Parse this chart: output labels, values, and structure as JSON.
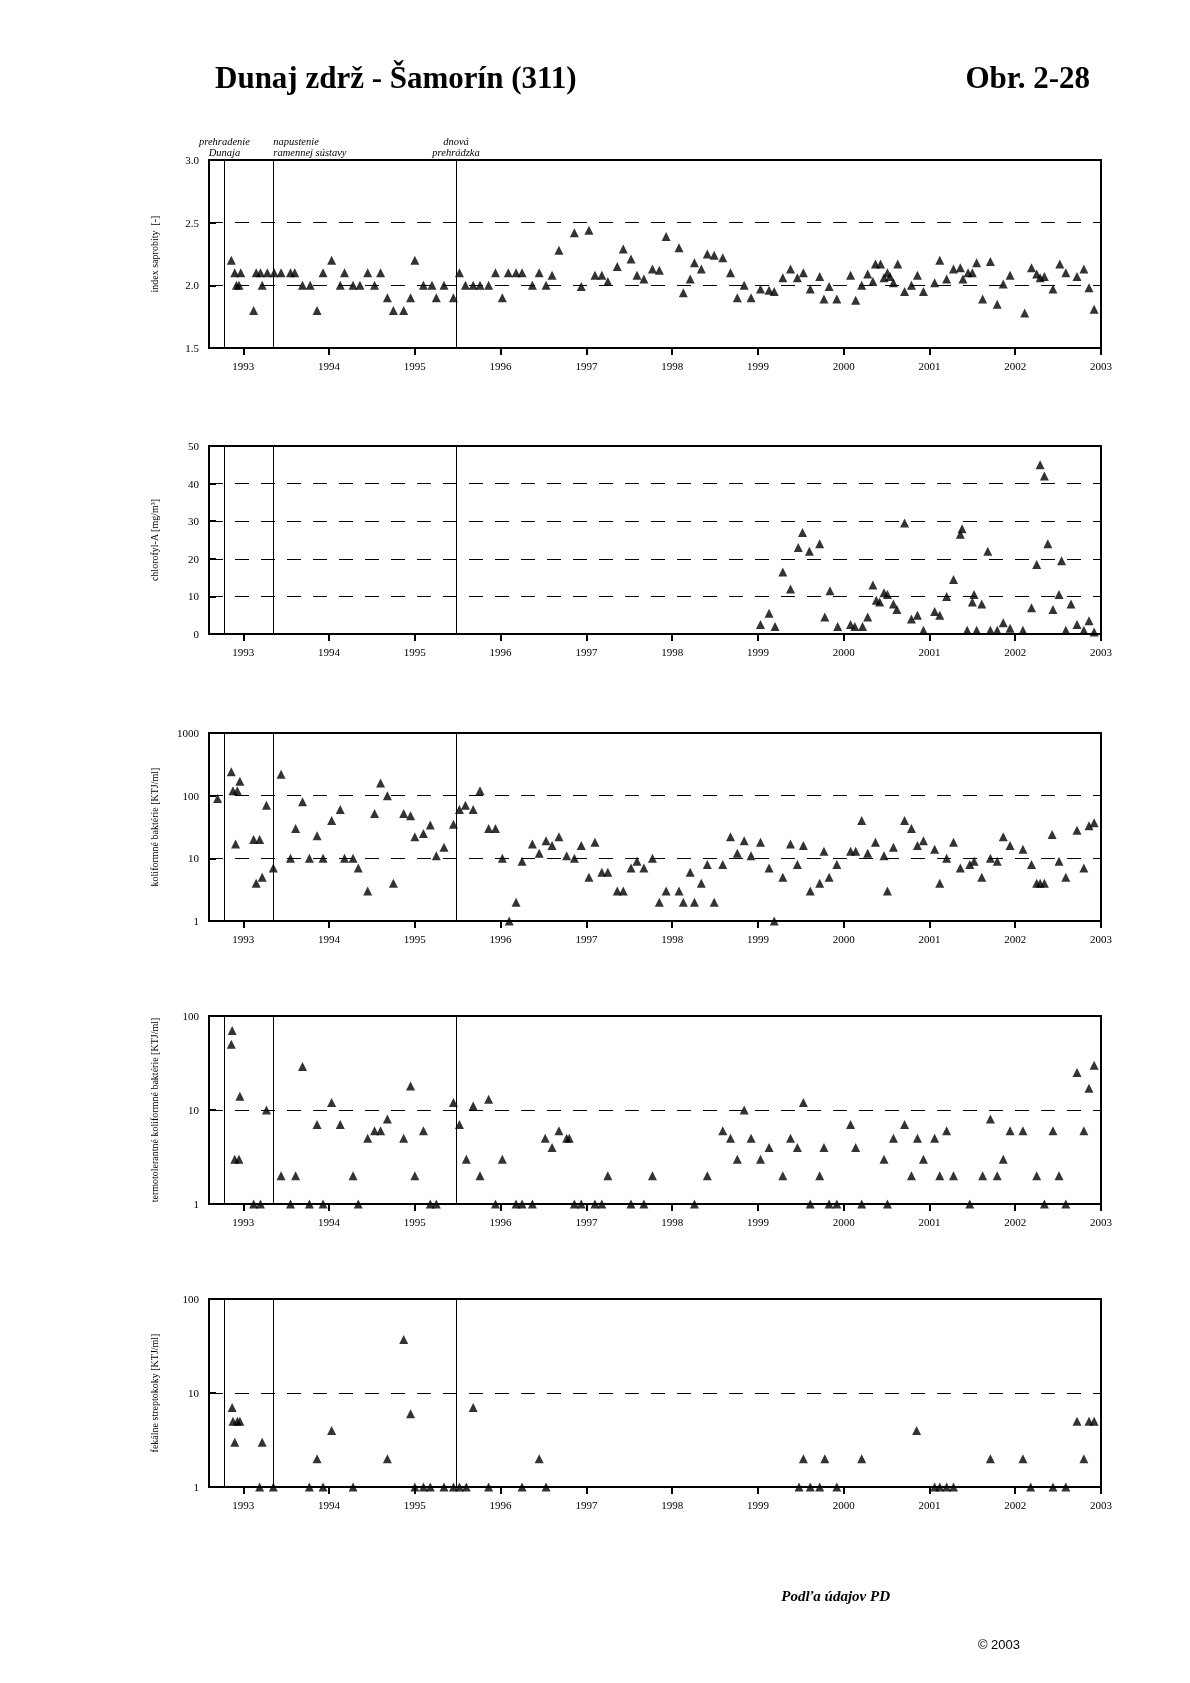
{
  "chart_data": [
    {
      "type": "scatter",
      "title": "Dunaj zdrž - Šamorín (311)",
      "subtitle": "Obr. 2-28",
      "ylabel": "index saprobity  [-]",
      "color": "#000000",
      "marker": "triangle",
      "grid": "y",
      "xlim": [
        1992.6,
        2003
      ],
      "xticks": [
        1993,
        1994,
        1995,
        1996,
        1997,
        1998,
        1999,
        2000,
        2001,
        2002,
        2003
      ],
      "ylim": [
        1.5,
        3
      ],
      "yticks": [
        1.5,
        {
          "value": 2,
          "label": "2.0"
        },
        2.5,
        {
          "value": 3,
          "label": "3.0"
        }
      ],
      "ref_lines": [
        {
          "axis": "x",
          "value": 1992.78,
          "label": "prehradenie\nDunaja"
        },
        {
          "axis": "x",
          "value": 1993.35,
          "label": "napustenie\nramennej sústavy"
        },
        {
          "axis": "x",
          "value": 1995.48,
          "label": "dnová\nprehrádzka"
        }
      ],
      "x": [
        1992.86,
        1992.9,
        1992.92,
        1992.95,
        1992.97,
        1993.12,
        1993.15,
        1993.2,
        1993.22,
        1993.28,
        1993.36,
        1993.44,
        1993.55,
        1993.6,
        1993.69,
        1993.78,
        1993.86,
        1993.93,
        1994.03,
        1994.13,
        1994.18,
        1994.28,
        1994.36,
        1994.45,
        1994.53,
        1994.6,
        1994.68,
        1994.75,
        1994.87,
        1994.95,
        1995.0,
        1995.1,
        1995.2,
        1995.25,
        1995.34,
        1995.45,
        1995.52,
        1995.59,
        1995.68,
        1995.76,
        1995.86,
        1995.94,
        1996.02,
        1996.09,
        1996.18,
        1996.25,
        1996.37,
        1996.45,
        1996.53,
        1996.6,
        1996.68,
        1996.86,
        1996.94,
        1997.03,
        1997.1,
        1997.18,
        1997.25,
        1997.36,
        1997.43,
        1997.52,
        1997.59,
        1997.67,
        1997.77,
        1997.85,
        1997.93,
        1998.08,
        1998.13,
        1998.21,
        1998.26,
        1998.34,
        1998.41,
        1998.49,
        1998.59,
        1998.68,
        1998.76,
        1998.84,
        1998.92,
        1999.03,
        1999.13,
        1999.19,
        1999.29,
        1999.38,
        1999.46,
        1999.53,
        1999.61,
        1999.72,
        1999.77,
        1999.83,
        1999.92,
        2000.08,
        2000.14,
        2000.21,
        2000.28,
        2000.34,
        2000.37,
        2000.43,
        2000.47,
        2000.51,
        2000.54,
        2000.58,
        2000.63,
        2000.71,
        2000.79,
        2000.86,
        2000.93,
        2001.06,
        2001.12,
        2001.2,
        2001.28,
        2001.36,
        2001.39,
        2001.45,
        2001.5,
        2001.55,
        2001.62,
        2001.71,
        2001.79,
        2001.86,
        2001.94,
        2002.11,
        2002.19,
        2002.25,
        2002.29,
        2002.34,
        2002.44,
        2002.52,
        2002.59,
        2002.72,
        2002.8,
        2002.86,
        2002.92
      ],
      "values": [
        2.2,
        2.1,
        2.0,
        2.0,
        2.1,
        1.8,
        2.1,
        2.1,
        2.0,
        2.1,
        2.1,
        2.1,
        2.1,
        2.1,
        2.0,
        2.0,
        1.8,
        2.1,
        2.2,
        2.0,
        2.1,
        2.0,
        2.0,
        2.1,
        2.0,
        2.1,
        1.9,
        1.8,
        1.8,
        1.9,
        2.2,
        2.0,
        2.0,
        1.9,
        2.0,
        1.9,
        2.1,
        2.0,
        2.0,
        2.0,
        2.0,
        2.1,
        1.9,
        2.1,
        2.1,
        2.1,
        2.0,
        2.1,
        2.0,
        2.08,
        2.28,
        2.42,
        1.99,
        2.44,
        2.08,
        2.08,
        2.03,
        2.15,
        2.29,
        2.21,
        2.08,
        2.05,
        2.13,
        2.12,
        2.39,
        2.3,
        1.94,
        2.05,
        2.18,
        2.13,
        2.25,
        2.24,
        2.22,
        2.1,
        1.9,
        2.0,
        1.9,
        1.97,
        1.96,
        1.95,
        2.06,
        2.13,
        2.06,
        2.1,
        1.97,
        2.07,
        1.89,
        1.99,
        1.89,
        2.08,
        1.88,
        2.0,
        2.09,
        2.03,
        2.17,
        2.17,
        2.06,
        2.1,
        2.07,
        2.02,
        2.17,
        1.95,
        2.0,
        2.08,
        1.95,
        2.02,
        2.2,
        2.05,
        2.13,
        2.14,
        2.05,
        2.1,
        2.1,
        2.18,
        1.89,
        2.19,
        1.85,
        2.01,
        2.08,
        1.78,
        2.14,
        2.09,
        2.06,
        2.07,
        1.97,
        2.17,
        2.1,
        2.07,
        2.13,
        1.98,
        1.81
      ]
    },
    {
      "type": "scatter",
      "ylabel": "chlorofyl-A [mg/m³]",
      "color": "#000000",
      "marker": "triangle",
      "grid": "y",
      "xlim": [
        1992.6,
        2003
      ],
      "xticks": [
        1993,
        1994,
        1995,
        1996,
        1997,
        1998,
        1999,
        2000,
        2001,
        2002,
        2003
      ],
      "ylim": [
        0,
        50
      ],
      "yticks": [
        0,
        10,
        20,
        30,
        40,
        50
      ],
      "ref_lines": [
        {
          "axis": "x",
          "value": 1992.78
        },
        {
          "axis": "x",
          "value": 1993.35
        },
        {
          "axis": "x",
          "value": 1995.48
        }
      ],
      "x": [
        1999.03,
        1999.13,
        1999.2,
        1999.29,
        1999.38,
        1999.47,
        1999.52,
        1999.6,
        1999.72,
        1999.78,
        1999.84,
        1999.93,
        2000.08,
        2000.13,
        2000.22,
        2000.28,
        2000.34,
        2000.38,
        2000.42,
        2000.47,
        2000.51,
        2000.58,
        2000.62,
        2000.71,
        2000.79,
        2000.86,
        2000.93,
        2001.06,
        2001.12,
        2001.2,
        2001.28,
        2001.36,
        2001.38,
        2001.44,
        2001.5,
        2001.52,
        2001.55,
        2001.61,
        2001.68,
        2001.71,
        2001.79,
        2001.86,
        2001.94,
        2002.09,
        2002.19,
        2002.25,
        2002.29,
        2002.34,
        2002.38,
        2002.44,
        2002.51,
        2002.54,
        2002.59,
        2002.65,
        2002.72,
        2002.8,
        2002.86,
        2002.92
      ],
      "values": [
        2.5,
        5.5,
        2,
        16.5,
        12,
        23,
        27,
        22,
        24,
        4.5,
        11.5,
        2,
        2.5,
        2,
        2,
        4.5,
        13,
        9,
        8.5,
        11,
        10.5,
        8,
        6.5,
        29.5,
        4,
        5,
        1,
        6,
        5,
        10,
        14.5,
        26.5,
        28,
        1,
        8.5,
        10.5,
        1,
        8,
        22,
        1,
        1,
        3,
        1.5,
        1,
        7,
        18.5,
        45,
        42,
        24,
        6.5,
        10.5,
        19.5,
        1,
        8,
        2.5,
        1,
        3.5,
        0.5
      ]
    },
    {
      "type": "scatter",
      "ylabel": "koliformné baktérie [KTJ/ml]",
      "color": "#000000",
      "marker": "triangle",
      "grid": "y",
      "log": "y",
      "xlim": [
        1992.6,
        2003
      ],
      "xticks": [
        1993,
        1994,
        1995,
        1996,
        1997,
        1998,
        1999,
        2000,
        2001,
        2002,
        2003
      ],
      "ylim": [
        1,
        1000
      ],
      "yticks": [
        1,
        10,
        100,
        1000
      ],
      "ref_lines": [
        {
          "axis": "x",
          "value": 1992.78
        },
        {
          "axis": "x",
          "value": 1993.35
        },
        {
          "axis": "x",
          "value": 1995.48
        }
      ],
      "x": [
        1992.7,
        1992.86,
        1992.88,
        1992.91,
        1992.93,
        1992.96,
        1993.12,
        1993.15,
        1993.19,
        1993.22,
        1993.27,
        1993.35,
        1993.44,
        1993.55,
        1993.61,
        1993.69,
        1993.77,
        1993.86,
        1993.93,
        1994.03,
        1994.13,
        1994.18,
        1994.28,
        1994.34,
        1994.45,
        1994.53,
        1994.6,
        1994.68,
        1994.75,
        1994.87,
        1994.95,
        1995.0,
        1995.1,
        1995.18,
        1995.25,
        1995.34,
        1995.45,
        1995.52,
        1995.59,
        1995.68,
        1995.76,
        1995.86,
        1995.94,
        1996.02,
        1996.1,
        1996.18,
        1996.25,
        1996.37,
        1996.45,
        1996.53,
        1996.6,
        1996.68,
        1996.77,
        1996.86,
        1996.94,
        1997.03,
        1997.1,
        1997.18,
        1997.25,
        1997.36,
        1997.43,
        1997.52,
        1997.59,
        1997.67,
        1997.77,
        1997.85,
        1997.93,
        1998.08,
        1998.13,
        1998.21,
        1998.26,
        1998.34,
        1998.41,
        1998.49,
        1998.59,
        1998.68,
        1998.76,
        1998.84,
        1998.92,
        1999.03,
        1999.13,
        1999.19,
        1999.29,
        1999.38,
        1999.46,
        1999.53,
        1999.61,
        1999.72,
        1999.77,
        1999.83,
        1999.92,
        2000.08,
        2000.14,
        2000.21,
        2000.28,
        2000.37,
        2000.47,
        2000.51,
        2000.58,
        2000.71,
        2000.79,
        2000.86,
        2000.93,
        2001.06,
        2001.12,
        2001.2,
        2001.28,
        2001.36,
        2001.47,
        2001.52,
        2001.61,
        2001.71,
        2001.79,
        2001.86,
        2001.94,
        2002.09,
        2002.19,
        2002.25,
        2002.29,
        2002.34,
        2002.43,
        2002.51,
        2002.59,
        2002.72,
        2002.8,
        2002.86,
        2002.92
      ],
      "values": [
        90,
        240,
        120,
        17,
        120,
        170,
        20,
        4,
        20,
        5,
        70,
        7,
        220,
        10,
        30,
        80,
        10,
        23,
        10,
        40,
        60,
        10,
        10,
        7,
        3,
        52,
        160,
        100,
        4,
        52,
        48,
        22,
        25,
        34,
        11,
        15,
        35,
        60,
        70,
        60,
        120,
        30,
        30,
        10,
        1,
        2,
        9,
        17,
        12,
        19,
        16,
        22,
        11,
        10,
        16,
        5,
        18,
        6,
        6,
        3,
        3,
        7,
        9,
        7,
        10,
        2,
        3,
        3,
        2,
        6,
        2,
        4,
        8,
        2,
        8,
        22,
        12,
        19,
        11,
        18,
        7,
        1,
        5,
        17,
        8,
        16,
        3,
        4,
        13,
        5,
        8,
        13,
        13,
        40,
        12,
        18,
        11,
        3,
        15,
        40,
        30,
        16,
        19,
        14,
        4,
        10,
        18,
        7,
        8,
        9,
        5,
        10,
        9,
        22,
        16,
        14,
        8,
        4,
        4,
        4,
        24,
        9,
        5,
        28,
        7,
        33,
        37
      ]
    },
    {
      "type": "scatter",
      "ylabel": "termotolerantné koliformné baktérie [KTJ/ml]",
      "color": "#000000",
      "marker": "triangle",
      "grid": "y",
      "log": "y",
      "xlim": [
        1992.6,
        2003
      ],
      "xticks": [
        1993,
        1994,
        1995,
        1996,
        1997,
        1998,
        1999,
        2000,
        2001,
        2002,
        2003
      ],
      "ylim": [
        1,
        100
      ],
      "yticks": [
        1,
        10,
        100
      ],
      "ref_lines": [
        {
          "axis": "x",
          "value": 1992.78
        },
        {
          "axis": "x",
          "value": 1993.35
        },
        {
          "axis": "x",
          "value": 1995.48
        }
      ],
      "x": [
        1992.86,
        1992.87,
        1992.9,
        1992.95,
        1992.96,
        1993.12,
        1993.2,
        1993.27,
        1993.44,
        1993.55,
        1993.61,
        1993.69,
        1993.77,
        1993.86,
        1993.93,
        1994.03,
        1994.13,
        1994.28,
        1994.34,
        1994.45,
        1994.53,
        1994.6,
        1994.68,
        1994.87,
        1994.95,
        1995.0,
        1995.1,
        1995.18,
        1995.25,
        1995.45,
        1995.52,
        1995.6,
        1995.68,
        1995.76,
        1995.86,
        1995.94,
        1996.02,
        1996.18,
        1996.25,
        1996.37,
        1996.52,
        1996.6,
        1996.68,
        1996.77,
        1996.8,
        1996.86,
        1996.94,
        1997.1,
        1997.18,
        1997.25,
        1997.52,
        1997.67,
        1997.77,
        1998.26,
        1998.41,
        1998.59,
        1998.68,
        1998.76,
        1998.84,
        1998.92,
        1999.03,
        1999.13,
        1999.29,
        1999.38,
        1999.46,
        1999.53,
        1999.61,
        1999.72,
        1999.77,
        1999.83,
        1999.92,
        2000.08,
        2000.14,
        2000.21,
        2000.47,
        2000.51,
        2000.58,
        2000.71,
        2000.79,
        2000.86,
        2000.93,
        2001.06,
        2001.12,
        2001.2,
        2001.28,
        2001.47,
        2001.62,
        2001.71,
        2001.79,
        2001.86,
        2001.94,
        2002.09,
        2002.25,
        2002.34,
        2002.44,
        2002.51,
        2002.59,
        2002.72,
        2002.8,
        2002.86,
        2002.92
      ],
      "values": [
        50,
        70,
        3,
        3,
        14,
        1,
        1,
        10,
        2,
        1,
        2,
        29,
        1,
        7,
        1,
        12,
        7,
        2,
        1,
        5,
        6,
        6,
        8,
        5,
        18,
        2,
        6,
        1,
        1,
        12,
        7,
        3,
        11,
        2,
        13,
        1,
        3,
        1,
        1,
        1,
        5,
        4,
        6,
        5,
        5,
        1,
        1,
        1,
        1,
        2,
        1,
        1,
        2,
        1,
        2,
        6,
        5,
        3,
        10,
        5,
        3,
        4,
        2,
        5,
        4,
        12,
        1,
        2,
        4,
        1,
        1,
        7,
        4,
        1,
        3,
        1,
        5,
        7,
        2,
        5,
        3,
        5,
        2,
        6,
        2,
        1,
        2,
        8,
        2,
        3,
        6,
        6,
        2,
        1,
        6,
        2,
        1,
        25,
        6,
        17,
        30
      ]
    },
    {
      "type": "scatter",
      "ylabel": "fekálne streptokoky [KTJ/ml]",
      "color": "#000000",
      "marker": "triangle",
      "grid": "y",
      "log": "y",
      "xlim": [
        1992.6,
        2003
      ],
      "xticks": [
        1993,
        1994,
        1995,
        1996,
        1997,
        1998,
        1999,
        2000,
        2001,
        2002,
        2003
      ],
      "ylim": [
        1,
        100
      ],
      "yticks": [
        1,
        10,
        100
      ],
      "ref_lines": [
        {
          "axis": "x",
          "value": 1992.78
        },
        {
          "axis": "x",
          "value": 1993.35
        },
        {
          "axis": "x",
          "value": 1995.48
        }
      ],
      "annotations": [
        "Podľa údajov PD",
        "© 2003"
      ],
      "x": [
        1992.87,
        1992.88,
        1992.9,
        1992.93,
        1992.96,
        1993.19,
        1993.22,
        1993.35,
        1993.77,
        1993.86,
        1993.93,
        1994.03,
        1994.28,
        1994.68,
        1994.87,
        1994.95,
        1995.0,
        1995.1,
        1995.18,
        1995.34,
        1995.45,
        1995.52,
        1995.6,
        1995.68,
        1995.86,
        1996.25,
        1996.45,
        1996.53,
        1999.48,
        1999.53,
        1999.61,
        1999.72,
        1999.78,
        1999.92,
        2000.21,
        2000.85,
        2001.06,
        2001.12,
        2001.2,
        2001.28,
        2001.71,
        2002.09,
        2002.18,
        2002.44,
        2002.59,
        2002.72,
        2002.8,
        2002.86,
        2002.92
      ],
      "values": [
        7,
        5,
        3,
        5,
        5,
        1,
        3,
        1,
        1,
        2,
        1,
        4,
        1,
        2,
        37,
        6,
        1,
        1,
        1,
        1,
        1,
        1,
        1,
        7,
        1,
        1,
        2,
        1,
        1,
        2,
        1,
        1,
        2,
        1,
        2,
        4,
        1,
        1,
        1,
        1,
        2,
        2,
        1,
        1,
        1,
        5,
        2,
        5,
        5
      ]
    }
  ]
}
